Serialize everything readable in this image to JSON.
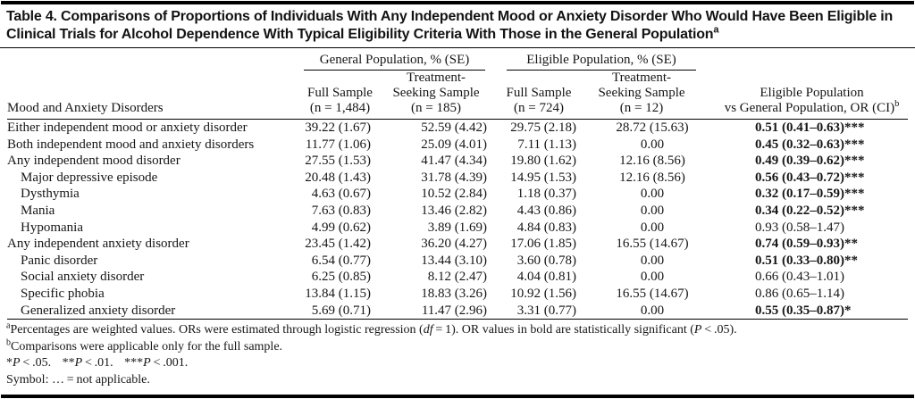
{
  "title": {
    "text": "Table 4. Comparisons of Proportions of Individuals With Any Independent Mood or Anxiety Disorder Who Would Have Been Eligible in Clinical Trials for Alcohol Dependence With Typical Eligibility Criteria With Those in the General Population",
    "superscript": "a"
  },
  "table": {
    "stub_header": "Mood and Anxiety Disorders",
    "spanners": [
      "General Population, % (SE)",
      "Eligible Population, % (SE)"
    ],
    "columns": [
      {
        "line1": "Full Sample",
        "line2": "(n = 1,484)"
      },
      {
        "line1": "Treatment-",
        "line2": "Seeking Sample",
        "line3": "(n = 185)"
      },
      {
        "line1": "Full Sample",
        "line2": "(n = 724)"
      },
      {
        "line1": "Treatment-",
        "line2": "Seeking Sample",
        "line3": "(n = 12)"
      },
      {
        "line1": "Eligible Population",
        "line2": "vs General Population, OR (CI)",
        "superscript": "b"
      }
    ],
    "rows": [
      {
        "label": "Either independent mood or anxiety disorder",
        "indent": false,
        "gp_full": "39.22 (1.67)",
        "gp_ts": "52.59 (4.42)",
        "ep_full": "29.75 (2.18)",
        "ep_ts": "28.72 (15.63)",
        "or_ci": "0.51 (0.41–0.63)***",
        "or_bold": true
      },
      {
        "label": "Both independent mood and anxiety disorders",
        "indent": false,
        "gp_full": "11.77 (1.06)",
        "gp_ts": "25.09 (4.01)",
        "ep_full": "7.11 (1.13)",
        "ep_ts": "0.00",
        "or_ci": "0.45 (0.32–0.63)***",
        "or_bold": true
      },
      {
        "label": "Any independent mood disorder",
        "indent": false,
        "gp_full": "27.55 (1.53)",
        "gp_ts": "41.47 (4.34)",
        "ep_full": "19.80 (1.62)",
        "ep_ts": "12.16 (8.56)",
        "or_ci": "0.49 (0.39–0.62)***",
        "or_bold": true
      },
      {
        "label": "Major depressive episode",
        "indent": true,
        "gp_full": "20.48 (1.43)",
        "gp_ts": "31.78 (4.39)",
        "ep_full": "14.95 (1.53)",
        "ep_ts": "12.16 (8.56)",
        "or_ci": "0.56 (0.43–0.72)***",
        "or_bold": true
      },
      {
        "label": "Dysthymia",
        "indent": true,
        "gp_full": "4.63 (0.67)",
        "gp_ts": "10.52 (2.84)",
        "ep_full": "1.18 (0.37)",
        "ep_ts": "0.00",
        "or_ci": "0.32 (0.17–0.59)***",
        "or_bold": true
      },
      {
        "label": "Mania",
        "indent": true,
        "gp_full": "7.63 (0.83)",
        "gp_ts": "13.46 (2.82)",
        "ep_full": "4.43 (0.86)",
        "ep_ts": "0.00",
        "or_ci": "0.34 (0.22–0.52)***",
        "or_bold": true
      },
      {
        "label": "Hypomania",
        "indent": true,
        "gp_full": "4.99 (0.62)",
        "gp_ts": "3.89 (1.69)",
        "ep_full": "4.84 (0.83)",
        "ep_ts": "0.00",
        "or_ci": "0.93 (0.58–1.47)",
        "or_bold": false
      },
      {
        "label": "Any independent anxiety disorder",
        "indent": false,
        "gp_full": "23.45 (1.42)",
        "gp_ts": "36.20 (4.27)",
        "ep_full": "17.06 (1.85)",
        "ep_ts": "16.55 (14.67)",
        "or_ci": "0.74 (0.59–0.93)**",
        "or_bold": true
      },
      {
        "label": "Panic disorder",
        "indent": true,
        "gp_full": "6.54 (0.77)",
        "gp_ts": "13.44 (3.10)",
        "ep_full": "3.60 (0.78)",
        "ep_ts": "0.00",
        "or_ci": "0.51 (0.33–0.80)**",
        "or_bold": true
      },
      {
        "label": "Social anxiety disorder",
        "indent": true,
        "gp_full": "6.25 (0.85)",
        "gp_ts": "8.12 (2.47)",
        "ep_full": "4.04 (0.81)",
        "ep_ts": "0.00",
        "or_ci": "0.66 (0.43–1.01)",
        "or_bold": false
      },
      {
        "label": "Specific phobia",
        "indent": true,
        "gp_full": "13.84 (1.15)",
        "gp_ts": "18.83 (3.26)",
        "ep_full": "10.92 (1.56)",
        "ep_ts": "16.55 (14.67)",
        "or_ci": "0.86 (0.65–1.14)",
        "or_bold": false
      },
      {
        "label": "Generalized anxiety disorder",
        "indent": true,
        "gp_full": "5.69 (0.71)",
        "gp_ts": "11.47 (2.96)",
        "ep_full": "3.31 (0.77)",
        "ep_ts": "0.00",
        "or_ci": "0.55 (0.35–0.87)*",
        "or_bold": true
      }
    ]
  },
  "footnotes": {
    "a": {
      "sup": "a",
      "s1": "Percentages are weighted values. ORs were estimated through logistic regression (",
      "i1": "df",
      "s2": " = 1). OR values in bold are statistically significant (",
      "i2": "P",
      "s3": " < .05)."
    },
    "b": {
      "sup": "b",
      "text": "Comparisons were applicable only for the full sample."
    },
    "sig": {
      "p1s": "*",
      "p1p": "P",
      "p1r": " < .05.",
      "p2s": "**",
      "p2p": "P",
      "p2r": " < .01.",
      "p3s": "***",
      "p3p": "P",
      "p3r": " < .001."
    },
    "symbol": "Symbol: … = not applicable."
  }
}
